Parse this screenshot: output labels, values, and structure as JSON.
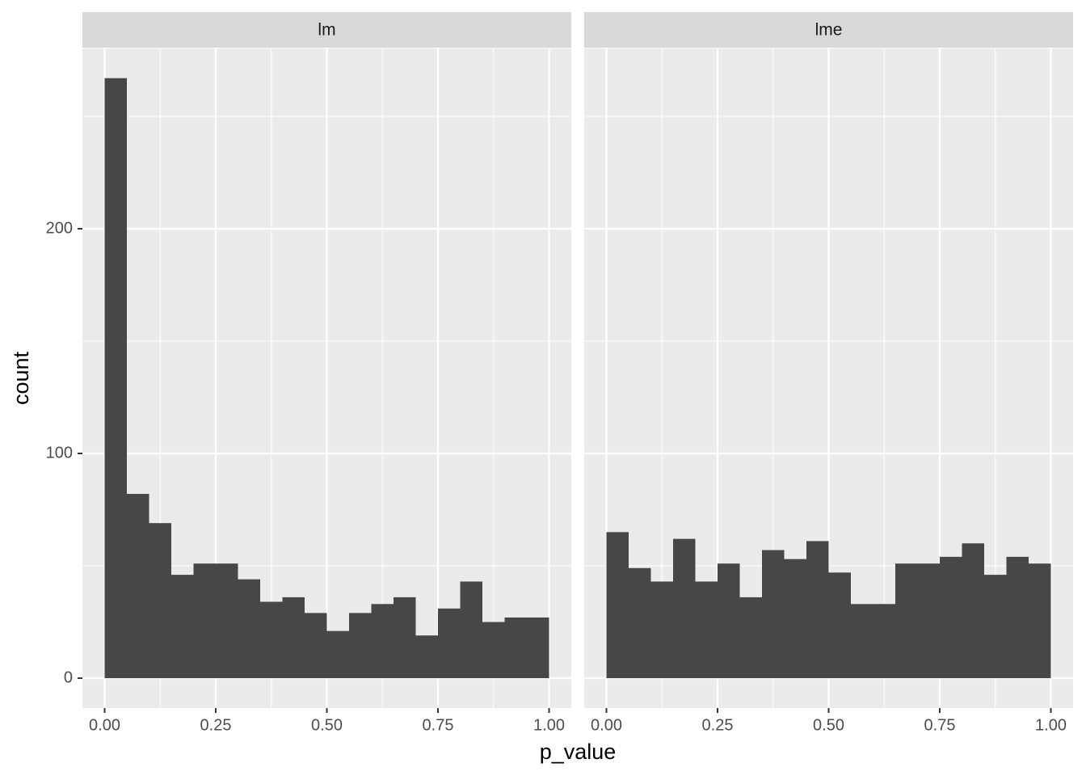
{
  "chart_data": {
    "type": "histogram",
    "x_label": "p_value",
    "y_label": "count",
    "bins": [
      0,
      0.05,
      0.1,
      0.15,
      0.2,
      0.25,
      0.3,
      0.35,
      0.4,
      0.45,
      0.5,
      0.55,
      0.6,
      0.65,
      0.7,
      0.75,
      0.8,
      0.85,
      0.9,
      0.95,
      1
    ],
    "facets": [
      {
        "name": "lm",
        "values": [
          267,
          82,
          69,
          46,
          51,
          51,
          44,
          34,
          36,
          29,
          21,
          29,
          33,
          36,
          19,
          31,
          43,
          25,
          27,
          27
        ]
      },
      {
        "name": "lme",
        "values": [
          65,
          49,
          43,
          62,
          43,
          51,
          36,
          57,
          53,
          61,
          47,
          33,
          33,
          51,
          51,
          54,
          60,
          46,
          54,
          51
        ]
      }
    ],
    "color": "#474747",
    "xlim": [
      -0.05,
      1.05
    ],
    "ylim": [
      -13.3,
      280.2
    ],
    "xticks": [
      {
        "value": 0,
        "label": "0.00"
      },
      {
        "value": 0.25,
        "label": "0.25"
      },
      {
        "value": 0.5,
        "label": "0.50"
      },
      {
        "value": 0.75,
        "label": "0.75"
      },
      {
        "value": 1,
        "label": "1.00"
      }
    ],
    "yticks": [
      0,
      100,
      200
    ],
    "minor_xticks": [
      0.125,
      0.375,
      0.625,
      0.875
    ],
    "minor_yticks": [
      50,
      150,
      250
    ],
    "grid": true
  }
}
